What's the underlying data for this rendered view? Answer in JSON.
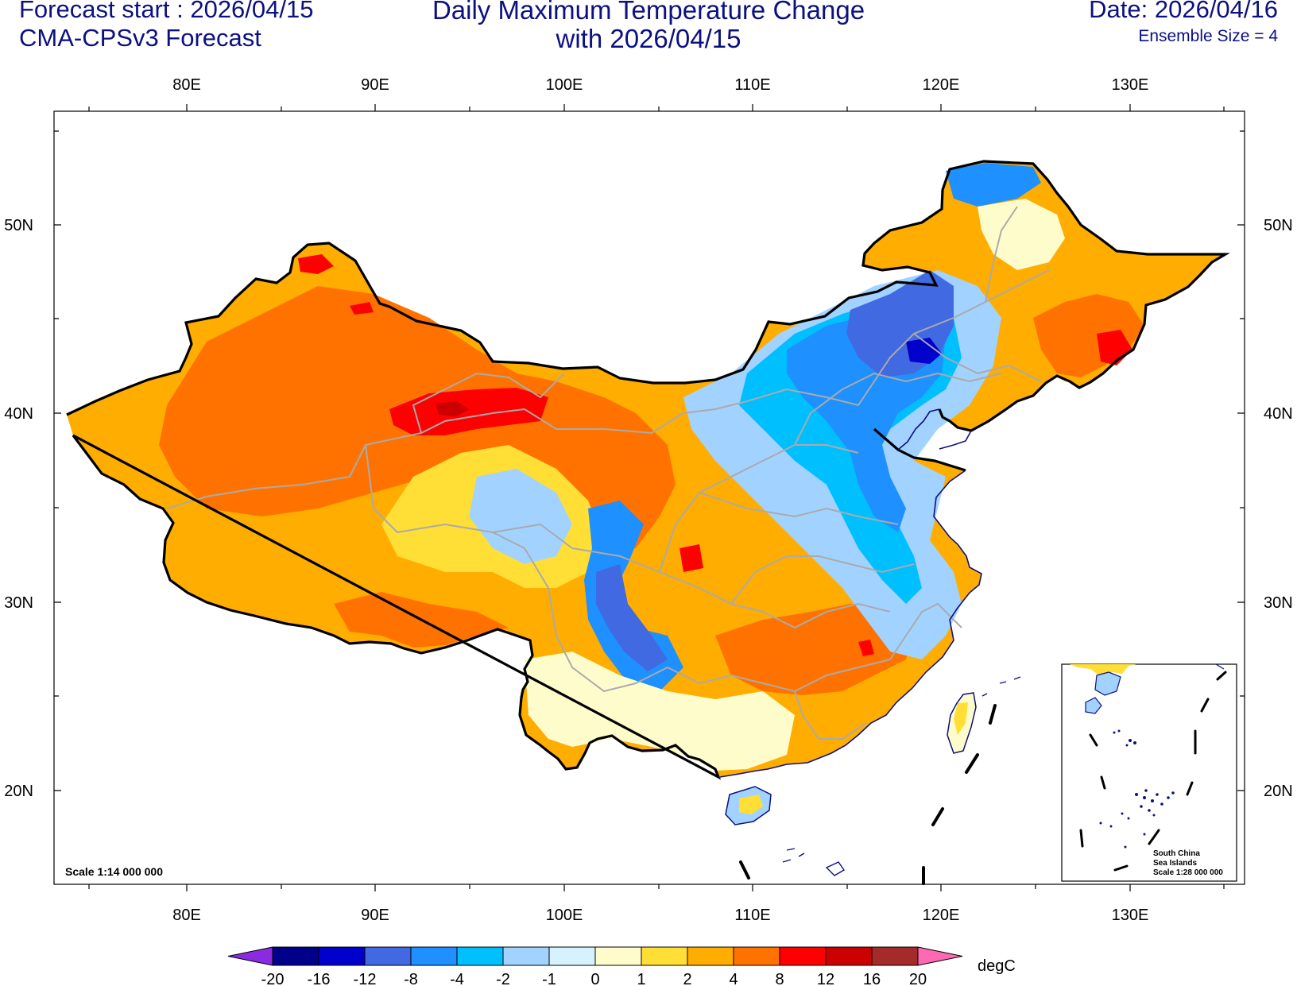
{
  "header": {
    "forecast_start": "Forecast start : 2026/04/15",
    "model": "CMA-CPSv3 Forecast",
    "title_line1": "Daily Maximum Temperature Change",
    "title_line2": "with 2026/04/15",
    "date": "Date: 2026/04/16",
    "ensemble": "Ensemble Size = 4"
  },
  "map": {
    "region": "China",
    "lon_ticks": [
      "80E",
      "90E",
      "100E",
      "110E",
      "120E",
      "130E"
    ],
    "lat_ticks": [
      "50N",
      "40N",
      "30N",
      "20N"
    ],
    "scale_main": "Scale 1:14 000 000",
    "inset_title_1": "South China",
    "inset_title_2": "Sea Islands",
    "inset_scale": "Scale 1:28 000 000"
  },
  "colorbar": {
    "unit": "degC",
    "labels": [
      "-20",
      "-16",
      "-12",
      "-8",
      "-4",
      "-2",
      "-1",
      "0",
      "1",
      "2",
      "4",
      "8",
      "12",
      "16",
      "20"
    ],
    "colors": [
      "#8a2be2",
      "#00008b",
      "#0000cd",
      "#4169e1",
      "#1e90ff",
      "#00bfff",
      "#a2d2ff",
      "#d6f2ff",
      "#fffccc",
      "#ffde36",
      "#ffad00",
      "#ff7200",
      "#ff0000",
      "#cc0000",
      "#a52a2a",
      "#ff69b4"
    ]
  }
}
